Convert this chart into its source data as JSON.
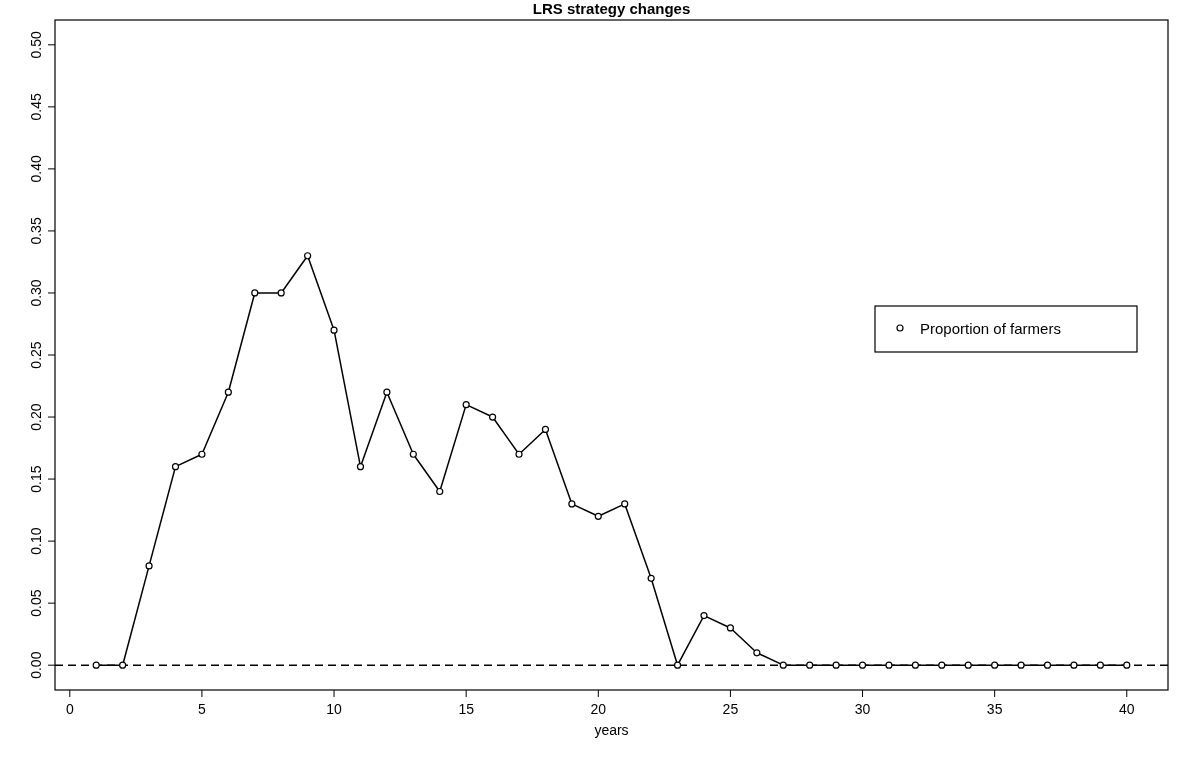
{
  "chart_data": {
    "type": "line",
    "title": "LRS strategy changes",
    "xlabel": "years",
    "x": [
      1,
      2,
      3,
      4,
      5,
      6,
      7,
      8,
      9,
      10,
      11,
      12,
      13,
      14,
      15,
      16,
      17,
      18,
      19,
      20,
      21,
      22,
      23,
      24,
      25,
      26,
      27,
      28,
      29,
      30,
      31,
      32,
      33,
      34,
      35,
      36,
      37,
      38,
      39,
      40
    ],
    "series": [
      {
        "name": "Proportion of farmers",
        "color": "#000000",
        "values": [
          0,
          0,
          0.08,
          0.16,
          0.17,
          0.22,
          0.3,
          0.3,
          0.33,
          0.27,
          0.16,
          0.22,
          0.17,
          0.14,
          0.21,
          0.2,
          0.17,
          0.19,
          0.13,
          0.12,
          0.13,
          0.07,
          0,
          0.04,
          0.03,
          0.01,
          0,
          0,
          0,
          0,
          0,
          0,
          0,
          0,
          0,
          0,
          0,
          0,
          0,
          0
        ]
      }
    ],
    "xlim": [
      -0.56,
      41.56
    ],
    "ylim": [
      -0.02,
      0.52
    ],
    "xticks": [
      0,
      5,
      10,
      15,
      20,
      25,
      30,
      35,
      40
    ],
    "yticks": [
      {
        "value": 0,
        "label": "0.00"
      },
      {
        "value": 0.05,
        "label": "0.05"
      },
      {
        "value": 0.1,
        "label": "0.10"
      },
      {
        "value": 0.15,
        "label": "0.15"
      },
      {
        "value": 0.2,
        "label": "0.20"
      },
      {
        "value": 0.25,
        "label": "0.25"
      },
      {
        "value": 0.3,
        "label": "0.30"
      },
      {
        "value": 0.35,
        "label": "0.35"
      },
      {
        "value": 0.4,
        "label": "0.40"
      },
      {
        "value": 0.45,
        "label": "0.45"
      },
      {
        "value": 0.5,
        "label": "0.50"
      }
    ],
    "ref_lines": [
      {
        "axis": "y",
        "value": 0,
        "color": "#000000",
        "line_style": "dashed"
      }
    ],
    "marker": "circle",
    "line_style": "solid",
    "legend": "right",
    "grid": false
  }
}
